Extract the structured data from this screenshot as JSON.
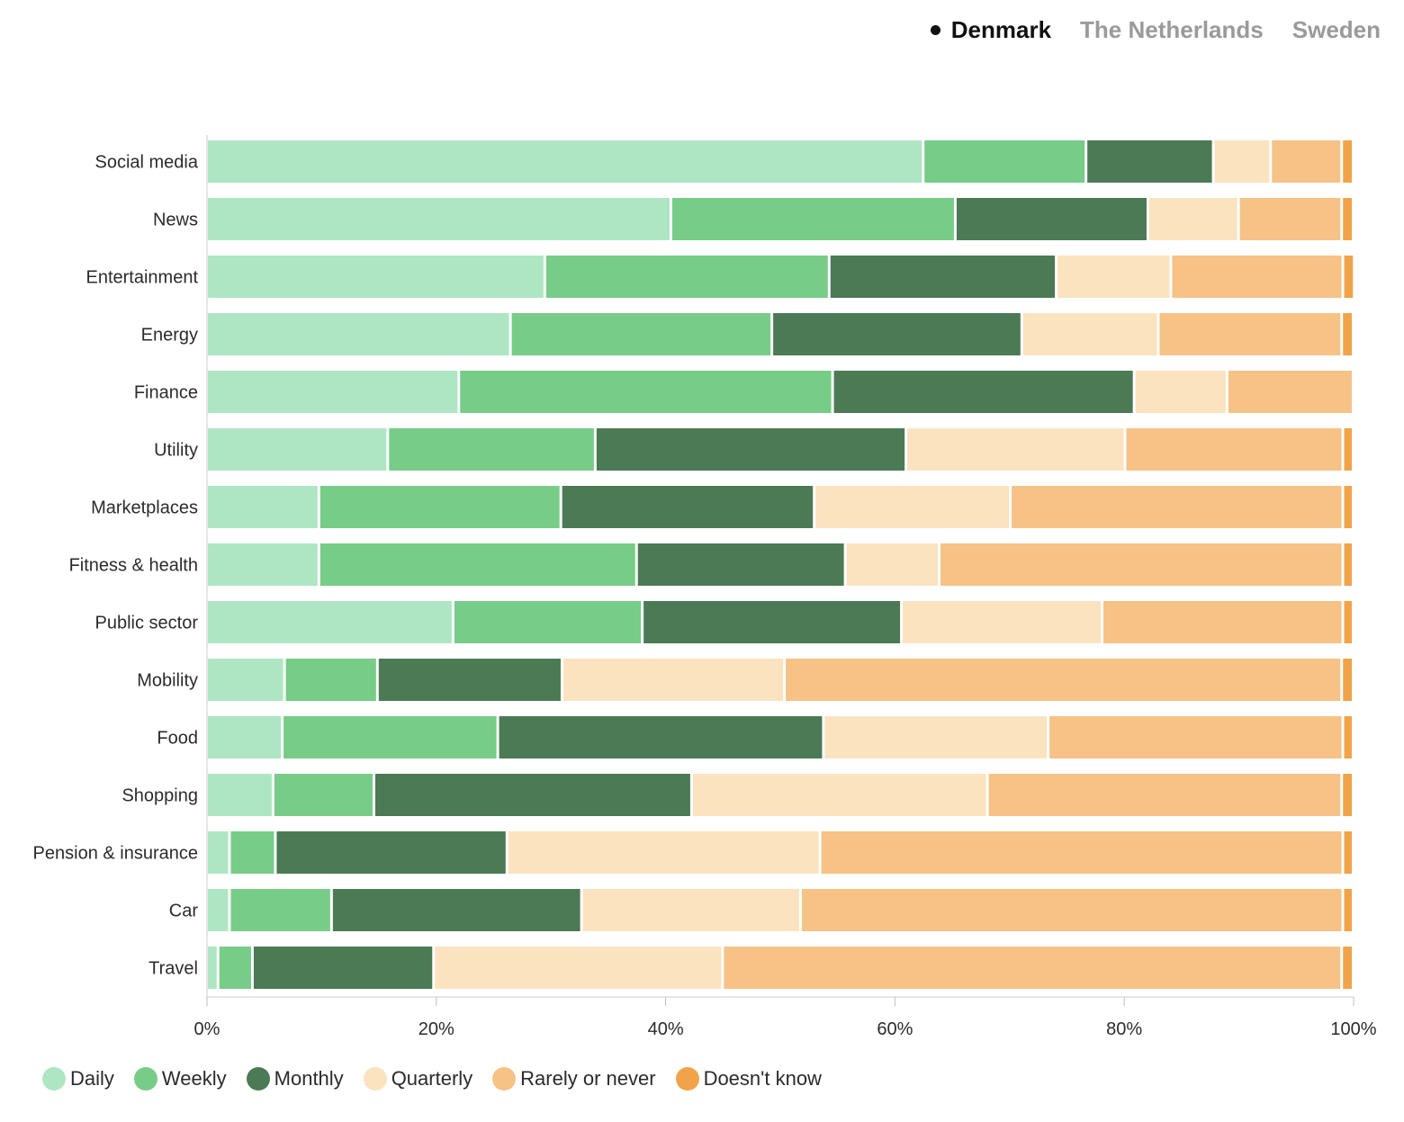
{
  "tabs": [
    {
      "label": "Denmark",
      "active": true
    },
    {
      "label": "The Netherlands",
      "active": false
    },
    {
      "label": "Sweden",
      "active": false
    }
  ],
  "chart_data": {
    "type": "bar",
    "orientation": "horizontal",
    "stacked": true,
    "normalized": true,
    "title": "",
    "xlabel": "",
    "ylabel": "",
    "xlim": [
      0,
      100
    ],
    "x_ticks": [
      "0%",
      "20%",
      "40%",
      "60%",
      "80%",
      "100%"
    ],
    "categories": [
      "Social media",
      "News",
      "Entertainment",
      "Energy",
      "Finance",
      "Utility",
      "Marketplaces",
      "Fitness & health",
      "Public sector",
      "Mobility",
      "Food",
      "Shopping",
      "Pension & insurance",
      "Car",
      "Travel"
    ],
    "series": [
      {
        "name": "Daily",
        "color": "#aee6c3",
        "values": [
          62.5,
          40.5,
          29.5,
          26.5,
          22,
          15.8,
          9.8,
          9.8,
          21.5,
          6.8,
          6.6,
          5.8,
          2,
          2,
          1
        ]
      },
      {
        "name": "Weekly",
        "color": "#77cc88",
        "values": [
          14.2,
          24.8,
          24.8,
          22.8,
          32.6,
          18.1,
          21.1,
          27.7,
          16.5,
          8.1,
          18.8,
          8.8,
          4,
          8.9,
          3
        ]
      },
      {
        "name": "Monthly",
        "color": "#4b7a55",
        "values": [
          11.1,
          16.8,
          19.8,
          21.8,
          26.3,
          27.1,
          22.1,
          18.2,
          22.6,
          16.1,
          28.4,
          27.7,
          20.2,
          21.8,
          15.8
        ]
      },
      {
        "name": "Quarterly",
        "color": "#fbe3c0",
        "values": [
          5,
          7.9,
          10,
          11.9,
          8.1,
          19.1,
          17.1,
          8.2,
          17.5,
          19.4,
          19.6,
          25.8,
          27.3,
          19.1,
          25.2
        ]
      },
      {
        "name": "Rarely or never",
        "color": "#f6c285",
        "values": [
          6.2,
          9,
          15,
          16,
          11,
          19,
          29,
          35.2,
          21,
          48.6,
          25.7,
          30.9,
          45.6,
          47.3,
          54
        ]
      },
      {
        "name": "Doesn't know",
        "color": "#f1a34a",
        "values": [
          1,
          1,
          1,
          1,
          0,
          0.9,
          0.9,
          0.9,
          0.9,
          1,
          0.9,
          1,
          0.9,
          0.9,
          1
        ]
      }
    ],
    "legend_position": "bottom"
  }
}
